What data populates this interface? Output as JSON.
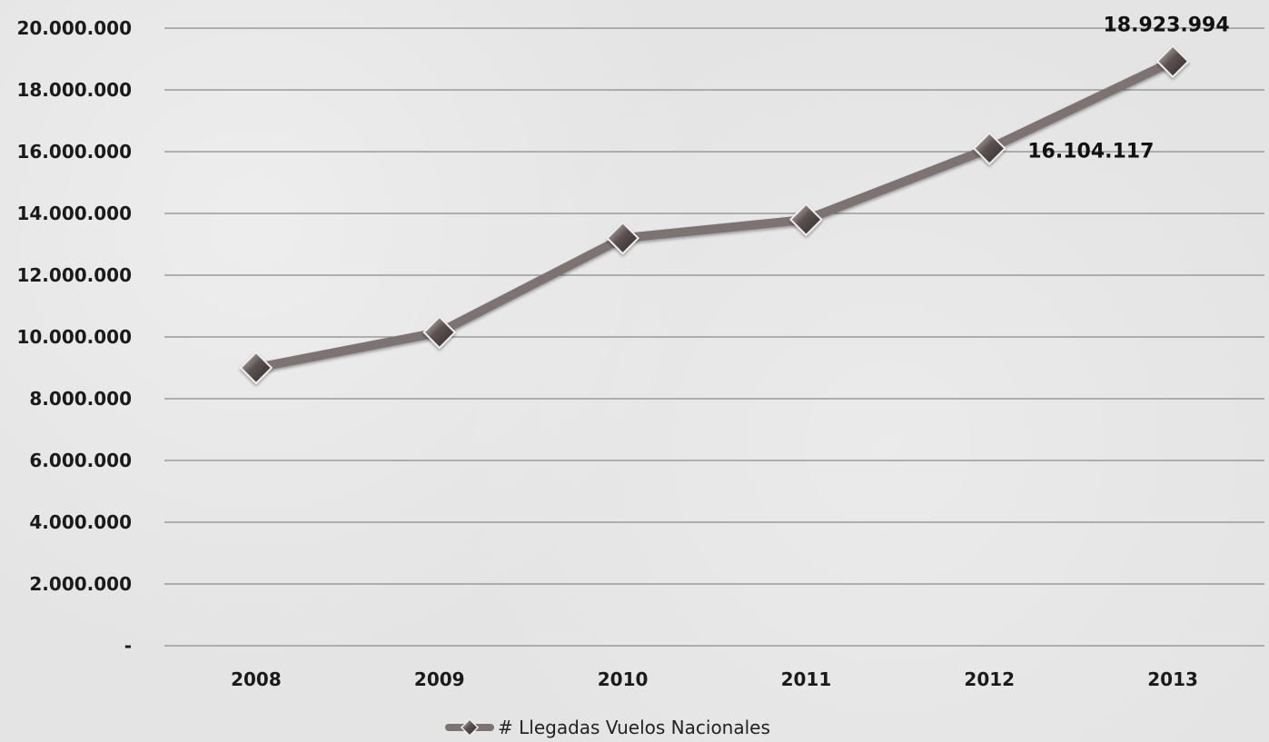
{
  "chart_data": {
    "type": "line",
    "categories": [
      "2008",
      "2009",
      "2010",
      "2011",
      "2012",
      "2013"
    ],
    "series": [
      {
        "name": "# Llegadas Vuelos Nacionales",
        "values": [
          9000000,
          10150000,
          13200000,
          13800000,
          16104117,
          18923994
        ]
      }
    ],
    "ylim": [
      0,
      20000000
    ],
    "y_ticks": [
      0,
      2000000,
      4000000,
      6000000,
      8000000,
      10000000,
      12000000,
      14000000,
      16000000,
      18000000,
      20000000
    ],
    "y_tick_labels": [
      "-",
      "2.000.000",
      "4.000.000",
      "6.000.000",
      "8.000.000",
      "10.000.000",
      "12.000.000",
      "14.000.000",
      "16.000.000",
      "18.000.000",
      "20.000.000"
    ],
    "data_labels": [
      {
        "category": "2012",
        "text": "16.104.117"
      },
      {
        "category": "2013",
        "text": "18.923.994"
      }
    ],
    "grid": true,
    "legend_position": "bottom",
    "line_color": "#7d7373",
    "marker_fill": "#5c5252",
    "marker_highlight": "#d9cfcf",
    "gridline_color": "#8a8a8a"
  }
}
